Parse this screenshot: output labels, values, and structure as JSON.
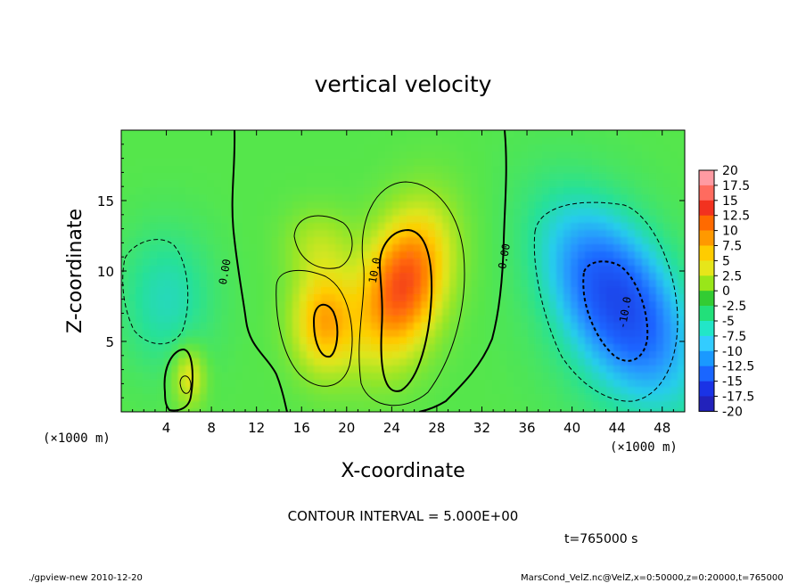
{
  "chart_data": {
    "type": "heatmap",
    "title": "vertical velocity",
    "xlabel": "X-coordinate",
    "ylabel": "Z-coordinate",
    "x_unit_label": "(×1000 m)",
    "y_unit_label": "(×1000 m)",
    "xlim": [
      0,
      50
    ],
    "ylim": [
      0,
      20
    ],
    "x_ticks": [
      4,
      8,
      12,
      16,
      20,
      24,
      28,
      32,
      36,
      40,
      44,
      48
    ],
    "y_ticks": [
      5,
      10,
      15
    ],
    "colorbar": {
      "labels": [
        "20",
        "17.5",
        "15",
        "12.5",
        "10",
        "7.5",
        "5",
        "2.5",
        "0",
        "-2.5",
        "-5",
        "-7.5",
        "-10",
        "-12.5",
        "-15",
        "-17.5",
        "-20"
      ],
      "colors": [
        "#ff9aa2",
        "#ff6b5f",
        "#f2321f",
        "#ff6a00",
        "#ff9900",
        "#ffcc00",
        "#e6e61a",
        "#99e619",
        "#33cc33",
        "#22e07a",
        "#22e6c8",
        "#33ccff",
        "#1a99ff",
        "#1a66ff",
        "#1a33e6",
        "#2222bb",
        "#4422aa"
      ]
    },
    "contour_labels": [
      {
        "text": "0.00",
        "x": 9.5,
        "y": 9.9
      },
      {
        "text": "10.0",
        "x": 22.8,
        "y": 10.0
      },
      {
        "text": "0.00",
        "x": 34.3,
        "y": 11.0
      },
      {
        "text": "-10.0",
        "x": 45.0,
        "y": 7.0
      }
    ],
    "features": [
      {
        "sign": "positive",
        "x": 25.0,
        "z": 9.0,
        "amplitude": 14.0
      },
      {
        "sign": "positive",
        "x": 18.0,
        "z": 6.5,
        "amplitude": 9.0
      },
      {
        "sign": "positive",
        "x": 6.0,
        "z": 2.5,
        "amplitude": 6.0
      },
      {
        "sign": "negative",
        "x": 44.0,
        "z": 8.0,
        "amplitude": -10.0
      },
      {
        "sign": "negative",
        "x": 4.0,
        "z": 8.0,
        "amplitude": -3.5
      }
    ],
    "contour_interval": "CONTOUR INTERVAL = 5.000E+00",
    "time_label": "t=765000 s"
  },
  "footer": {
    "left": "./gpview-new 2010-12-20",
    "right": "MarsCond_VelZ.nc@VelZ,x=0:50000,z=0:20000,t=765000"
  }
}
